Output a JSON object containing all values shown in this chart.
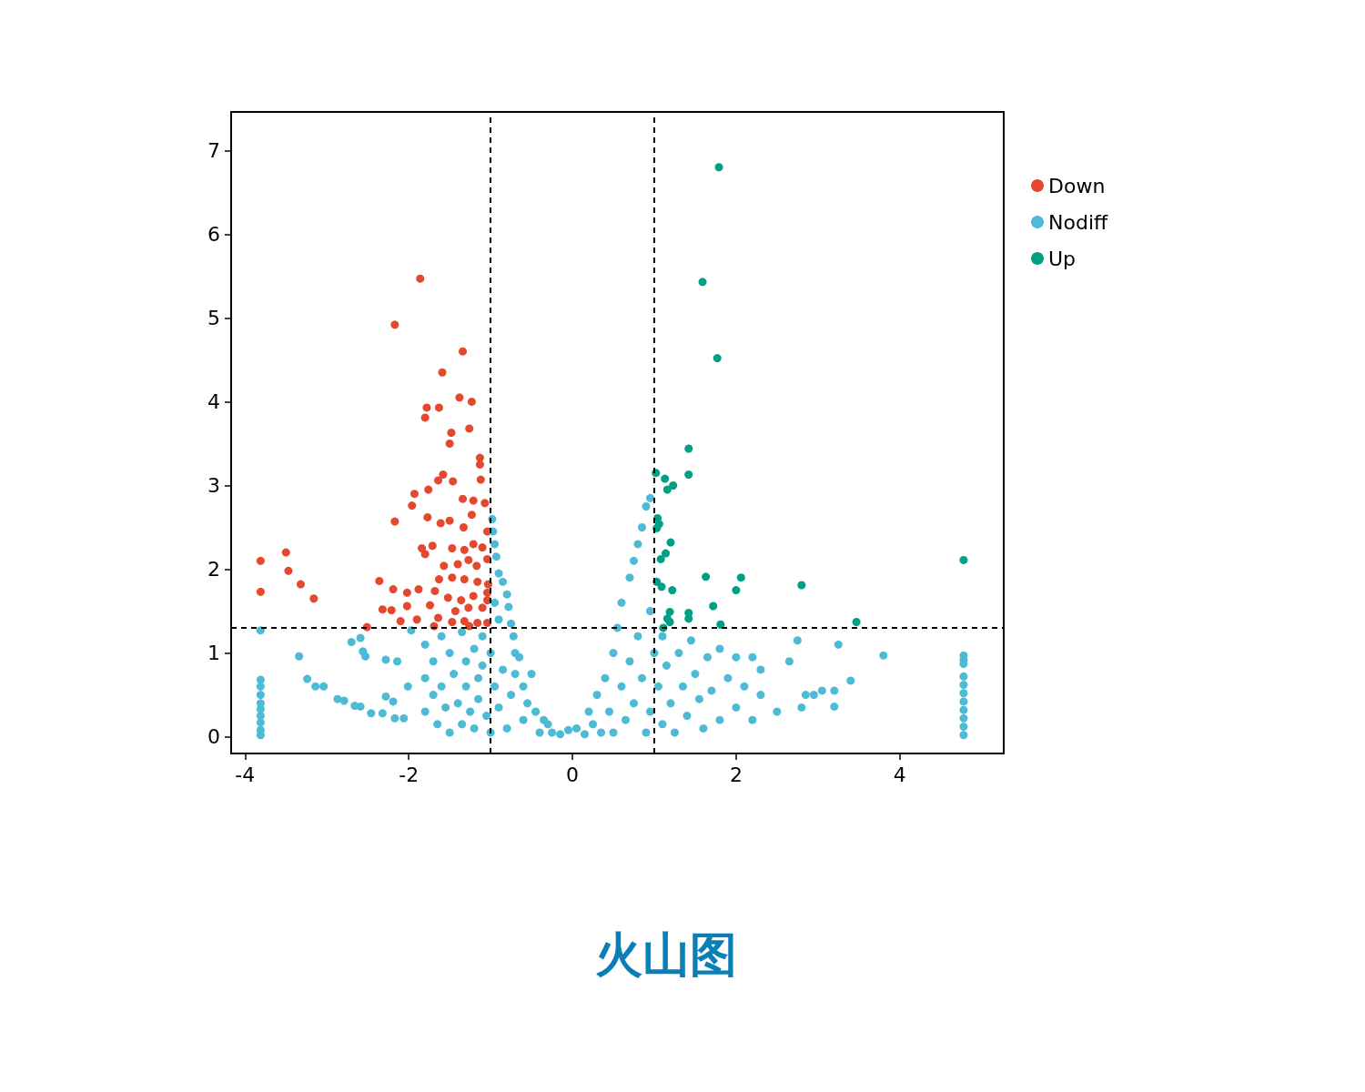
{
  "chart_data": {
    "type": "scatter",
    "title": "火山图",
    "marker": "circle",
    "legend": "top right",
    "grid": false,
    "xlim": [
      -4.17,
      5.27
    ],
    "xticks": [
      -4,
      -2,
      0,
      2,
      4
    ],
    "ylim": [
      -0.2,
      7.46
    ],
    "yticks": [
      0,
      1,
      2,
      3,
      4,
      5,
      6,
      7
    ],
    "ref_lines": [
      {
        "axis": "x",
        "value": -1,
        "line_style": "dashed",
        "color": "#000000"
      },
      {
        "axis": "x",
        "value": 1,
        "line_style": "dashed",
        "color": "#000000"
      },
      {
        "axis": "y",
        "value": 1.3,
        "line_style": "dashed",
        "color": "#000000"
      }
    ],
    "series": [
      {
        "name": "Down",
        "color": "#e4492f",
        "x": [
          -1.86,
          -2.17,
          -1.34,
          -1.59,
          -1.38,
          -1.23,
          -1.78,
          -1.63,
          -1.8,
          -1.26,
          -1.48,
          -1.5,
          -1.13,
          -1.13,
          -1.58,
          -1.46,
          -1.64,
          -1.12,
          -1.93,
          -1.96,
          -1.76,
          -1.34,
          -1.21,
          -1.07,
          -2.17,
          -1.77,
          -1.61,
          -1.5,
          -1.23,
          -1.33,
          -1.04,
          -1.84,
          -1.8,
          -1.71,
          -1.47,
          -1.32,
          -1.21,
          -1.1,
          -1.57,
          -1.4,
          -1.27,
          -1.17,
          -1.04,
          -1.63,
          -1.47,
          -1.32,
          -1.16,
          -1.03,
          -1.88,
          -1.68,
          -1.52,
          -1.36,
          -1.21,
          -1.04,
          -2.02,
          -1.74,
          -1.43,
          -1.27,
          -1.1,
          -1.04,
          -2.02,
          -1.9,
          -1.64,
          -1.47,
          -1.32,
          -1.16,
          -1.04,
          -2.1,
          -1.69,
          -1.26,
          -2.36,
          -2.19,
          -2.32,
          -2.21,
          -2.51,
          -3.81,
          -3.81,
          -3.5,
          -3.47,
          -3.32,
          -3.16
        ],
        "values": [
          5.47,
          4.92,
          4.6,
          4.35,
          4.05,
          4.0,
          3.93,
          3.93,
          3.81,
          3.68,
          3.63,
          3.5,
          3.33,
          3.25,
          3.13,
          3.05,
          3.06,
          3.07,
          2.9,
          2.76,
          2.95,
          2.84,
          2.82,
          2.79,
          2.57,
          2.62,
          2.55,
          2.58,
          2.65,
          2.5,
          2.45,
          2.25,
          2.18,
          2.28,
          2.25,
          2.23,
          2.3,
          2.26,
          2.04,
          2.06,
          2.11,
          2.04,
          2.12,
          1.88,
          1.9,
          1.88,
          1.85,
          1.82,
          1.76,
          1.74,
          1.66,
          1.63,
          1.68,
          1.72,
          1.72,
          1.57,
          1.5,
          1.54,
          1.54,
          1.63,
          1.56,
          1.4,
          1.42,
          1.37,
          1.38,
          1.36,
          1.36,
          1.38,
          1.32,
          1.32,
          1.86,
          1.76,
          1.52,
          1.51,
          1.31,
          2.1,
          1.73,
          2.2,
          1.98,
          1.82,
          1.65
        ]
      },
      {
        "name": "Nodiff",
        "color": "#4dbbd5",
        "x": [
          -3.81,
          -3.81,
          -3.81,
          -3.81,
          -3.81,
          -3.81,
          -3.81,
          -3.81,
          -3.81,
          -3.81,
          4.78,
          4.78,
          4.78,
          4.78,
          4.78,
          4.78,
          4.78,
          4.78,
          4.78,
          4.78,
          4.78,
          -3.34,
          -3.24,
          -3.14,
          -3.04,
          -2.87,
          -2.79,
          -2.66,
          -2.59,
          -2.46,
          -2.32,
          -2.7,
          -2.59,
          -2.56,
          -2.53,
          -2.28,
          -2.14,
          -2.28,
          -2.19,
          -2.17,
          -2.06,
          -2.01,
          -1.97,
          -1.8,
          -1.8,
          -1.8,
          -1.7,
          -1.7,
          -1.65,
          -1.6,
          -1.6,
          -1.55,
          -1.5,
          -1.5,
          -1.45,
          -1.4,
          -1.35,
          -1.35,
          -1.3,
          -1.3,
          -1.25,
          -1.2,
          -1.2,
          -1.15,
          -1.15,
          -1.1,
          -1.1,
          -1.05,
          -1.0,
          -1.0,
          -0.98,
          -0.97,
          -0.95,
          -0.93,
          -0.9,
          -0.85,
          -0.8,
          -0.78,
          -0.75,
          -0.72,
          -0.7,
          -0.95,
          -0.9,
          -0.95,
          -0.9,
          -0.85,
          -0.8,
          -0.75,
          -0.7,
          -0.65,
          -0.6,
          -0.6,
          -0.55,
          -0.5,
          -0.45,
          -0.4,
          -0.35,
          -0.3,
          -0.25,
          -0.15,
          -0.05,
          0.05,
          0.15,
          0.2,
          0.25,
          0.3,
          0.35,
          0.4,
          0.45,
          0.5,
          0.5,
          0.55,
          0.6,
          0.6,
          0.65,
          0.7,
          0.7,
          0.75,
          0.75,
          0.8,
          0.8,
          0.85,
          0.85,
          0.9,
          0.9,
          0.95,
          0.95,
          0.95,
          1.0,
          1.05,
          1.1,
          1.1,
          1.15,
          1.2,
          1.25,
          1.3,
          1.35,
          1.4,
          1.45,
          1.5,
          1.55,
          1.6,
          1.65,
          1.7,
          1.8,
          1.8,
          1.9,
          2.0,
          2.0,
          2.1,
          2.2,
          2.2,
          2.3,
          2.3,
          2.5,
          2.65,
          2.75,
          2.8,
          2.85,
          2.95,
          3.05,
          3.2,
          3.2,
          3.25,
          3.4,
          3.8
        ],
        "values": [
          1.27,
          0.68,
          0.6,
          0.5,
          0.4,
          0.33,
          0.25,
          0.17,
          0.08,
          0.02,
          0.97,
          0.92,
          0.87,
          0.72,
          0.62,
          0.52,
          0.42,
          0.32,
          0.22,
          0.12,
          0.02,
          0.96,
          0.69,
          0.6,
          0.6,
          0.45,
          0.43,
          0.37,
          0.36,
          0.28,
          0.28,
          1.13,
          1.18,
          1.02,
          0.96,
          0.92,
          0.9,
          0.48,
          0.42,
          0.22,
          0.22,
          0.6,
          1.27,
          1.1,
          0.7,
          0.3,
          0.9,
          0.5,
          0.15,
          1.2,
          0.6,
          0.35,
          1.0,
          0.05,
          0.75,
          0.4,
          1.25,
          0.15,
          0.9,
          0.6,
          0.3,
          1.05,
          0.1,
          0.7,
          0.45,
          1.2,
          0.85,
          0.25,
          0.05,
          1.0,
          2.6,
          2.45,
          2.3,
          2.15,
          1.95,
          1.85,
          1.7,
          1.55,
          1.35,
          1.2,
          1.0,
          1.6,
          1.4,
          0.6,
          0.35,
          0.8,
          0.1,
          0.5,
          0.75,
          0.95,
          0.6,
          0.2,
          0.4,
          0.75,
          0.3,
          0.05,
          0.2,
          0.15,
          0.05,
          0.03,
          0.08,
          0.1,
          0.03,
          0.3,
          0.15,
          0.5,
          0.05,
          0.7,
          0.3,
          1.0,
          0.05,
          1.3,
          0.6,
          1.6,
          0.2,
          1.9,
          0.9,
          2.1,
          0.4,
          2.3,
          1.2,
          2.5,
          0.7,
          2.75,
          0.05,
          2.85,
          1.5,
          0.3,
          1.0,
          0.6,
          0.15,
          1.2,
          0.85,
          0.4,
          0.05,
          1.0,
          0.6,
          0.25,
          1.15,
          0.75,
          0.45,
          0.1,
          0.95,
          0.55,
          1.05,
          0.2,
          0.7,
          0.95,
          0.35,
          0.6,
          0.2,
          0.95,
          0.5,
          0.8,
          0.3,
          0.9,
          1.15,
          0.35,
          0.5,
          0.5,
          0.55,
          0.55,
          0.36,
          1.1,
          0.67,
          0.97
        ]
      },
      {
        "name": "Up",
        "color": "#00a087",
        "x": [
          1.79,
          1.59,
          1.77,
          1.42,
          1.42,
          1.02,
          1.13,
          1.23,
          1.16,
          1.04,
          1.06,
          1.03,
          1.2,
          1.14,
          1.08,
          1.63,
          2.06,
          1.03,
          1.09,
          2.0,
          1.22,
          2.8,
          1.72,
          1.19,
          1.42,
          1.42,
          1.16,
          1.19,
          1.81,
          1.11,
          3.47,
          4.78
        ],
        "values": [
          6.8,
          5.43,
          4.52,
          3.44,
          3.13,
          3.15,
          3.08,
          3.0,
          2.95,
          2.61,
          2.54,
          2.49,
          2.32,
          2.19,
          2.12,
          1.91,
          1.9,
          1.85,
          1.79,
          1.75,
          1.75,
          1.81,
          1.56,
          1.49,
          1.48,
          1.41,
          1.41,
          1.37,
          1.34,
          1.3,
          1.37,
          2.11
        ]
      }
    ]
  }
}
